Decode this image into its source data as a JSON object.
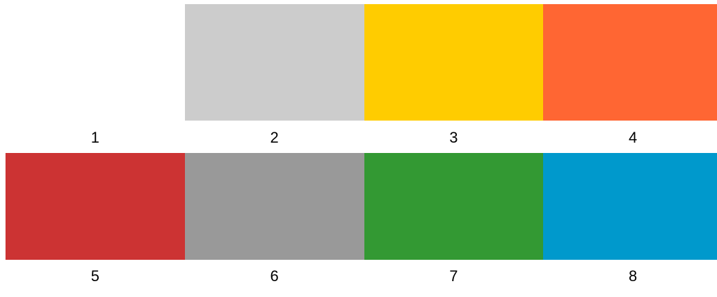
{
  "swatches": [
    {
      "label": "1",
      "color": "#ffffff"
    },
    {
      "label": "2",
      "color": "#cccccc"
    },
    {
      "label": "3",
      "color": "#ffcc00"
    },
    {
      "label": "4",
      "color": "#ff6633"
    },
    {
      "label": "5",
      "color": "#cc3333"
    },
    {
      "label": "6",
      "color": "#999999"
    },
    {
      "label": "7",
      "color": "#339933"
    },
    {
      "label": "8",
      "color": "#0099cc"
    }
  ]
}
